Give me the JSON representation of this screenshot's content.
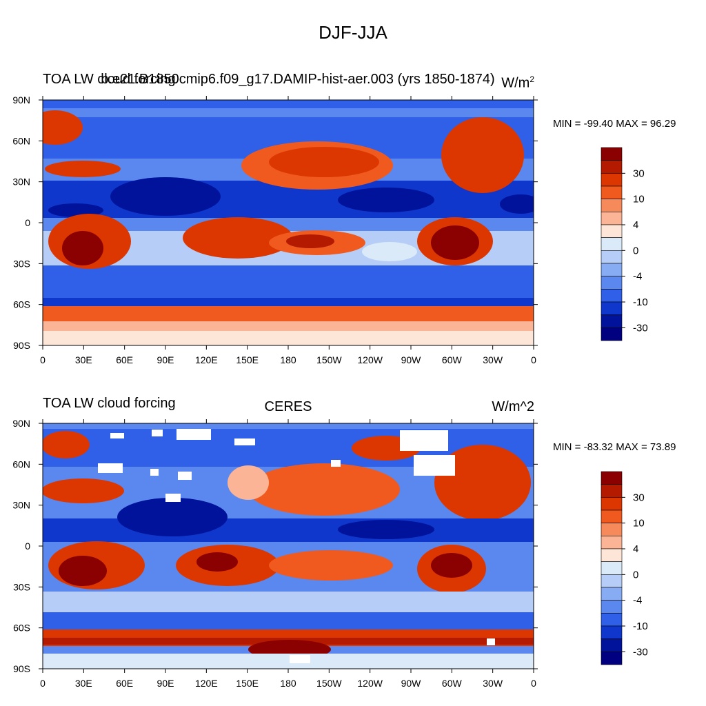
{
  "title": "DJF-JJA",
  "panels": [
    {
      "left_label": "TOA LW cloud forcing",
      "center_label": "b.e21.B1850cmip6.f09_g17.DAMIP-hist-aer.003 (yrs 1850-1874)",
      "units_text": "W/m",
      "units_sup": "2",
      "stats": "MIN = -99.40 MAX =  96.29",
      "min": -99.4,
      "max": 96.29
    },
    {
      "left_label": "TOA LW cloud forcing",
      "center_label": "CERES",
      "units_text": "W/m^2",
      "units_sup": "",
      "stats": "MIN = -83.32 MAX =  73.89",
      "min": -83.32,
      "max": 73.89
    }
  ],
  "chart_data": {
    "type": "heatmap",
    "projection": "cylindrical equidistant, longitude 0 to 360 (0 E at left and right edges)",
    "x_ticks": [
      "0",
      "30E",
      "60E",
      "90E",
      "120E",
      "150E",
      "180",
      "150W",
      "120W",
      "90W",
      "60W",
      "30W",
      "0"
    ],
    "y_ticks": [
      "90N",
      "60N",
      "30N",
      "0",
      "30S",
      "60S",
      "90S"
    ],
    "colorbar": {
      "labels": [
        "30",
        "10",
        "4",
        "0",
        "-4",
        "-10",
        "-30"
      ],
      "colors": [
        "#8b0000",
        "#b31a00",
        "#dc3700",
        "#f05a1e",
        "#f78a5a",
        "#fbb496",
        "#fde6d7",
        "#dbeaf8",
        "#b6cef7",
        "#88acf4",
        "#5a88ef",
        "#2f60e7",
        "#0f37cc",
        "#00139a",
        "#000080"
      ],
      "missing_color": "#ffffff"
    }
  }
}
